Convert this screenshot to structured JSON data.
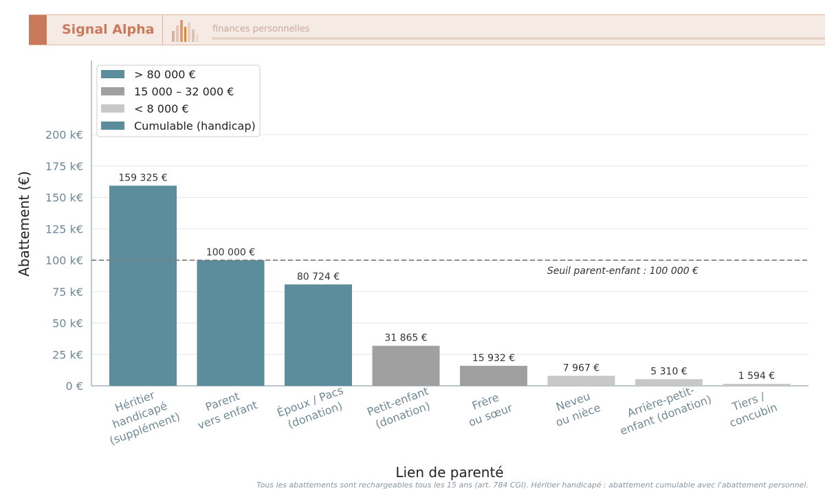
{
  "header": {
    "brand": "Signal Alpha",
    "tagline": "finances personnelles"
  },
  "colors": {
    "high": "#5b8d9d",
    "mid": "#a0a0a0",
    "low": "#c8c8c8",
    "axis_text": "#6f8896",
    "brand": "#c97a5c"
  },
  "chart_data": {
    "type": "bar",
    "xlabel": "Lien de parenté",
    "ylabel": "Abattement (€)",
    "ylim": [
      0,
      200000
    ],
    "yticks": [
      {
        "value": 0,
        "label": "0 €"
      },
      {
        "value": 25000,
        "label": "25 k€"
      },
      {
        "value": 50000,
        "label": "50 k€"
      },
      {
        "value": 75000,
        "label": "75 k€"
      },
      {
        "value": 100000,
        "label": "100 k€"
      },
      {
        "value": 125000,
        "label": "125 k€"
      },
      {
        "value": 150000,
        "label": "150 k€"
      },
      {
        "value": 175000,
        "label": "175 k€"
      },
      {
        "value": 200000,
        "label": "200 k€"
      }
    ],
    "grid": true,
    "legend_position": "top-left",
    "legend": [
      {
        "label": "> 80 000 €",
        "color": "#5b8d9d"
      },
      {
        "label": "15 000 – 32 000 €",
        "color": "#a0a0a0"
      },
      {
        "label": "< 8 000 €",
        "color": "#c8c8c8"
      },
      {
        "label": "Cumulable (handicap)",
        "color": "#5b8d9d"
      }
    ],
    "bars": [
      {
        "category": [
          "Héritier",
          "handicapé",
          "(supplément)"
        ],
        "value": 159325,
        "label": "159 325 €",
        "color": "#5b8d9d"
      },
      {
        "category": [
          "Parent",
          "vers enfant"
        ],
        "value": 100000,
        "label": "100 000 €",
        "color": "#5b8d9d"
      },
      {
        "category": [
          "Époux / Pacs",
          "(donation)"
        ],
        "value": 80724,
        "label": "80 724 €",
        "color": "#5b8d9d"
      },
      {
        "category": [
          "Petit-enfant",
          "(donation)"
        ],
        "value": 31865,
        "label": "31 865 €",
        "color": "#a0a0a0"
      },
      {
        "category": [
          "Frère",
          "ou sœur"
        ],
        "value": 15932,
        "label": "15 932 €",
        "color": "#a0a0a0"
      },
      {
        "category": [
          "Neveu",
          "ou nièce"
        ],
        "value": 7967,
        "label": "7 967 €",
        "color": "#c8c8c8"
      },
      {
        "category": [
          "Arrière-petit-",
          "enfant (donation)"
        ],
        "value": 5310,
        "label": "5 310 €",
        "color": "#c8c8c8"
      },
      {
        "category": [
          "Tiers /",
          "concubin"
        ],
        "value": 1594,
        "label": "1 594 €",
        "color": "#c8c8c8"
      }
    ],
    "reference_line": {
      "value": 100000,
      "label": "Seuil parent-enfant : 100 000 €"
    },
    "footnote": "Tous les abattements sont rechargeables tous les 15 ans (art. 784 CGI). Héritier handicapé : abattement cumulable avec l'abattement personnel."
  }
}
